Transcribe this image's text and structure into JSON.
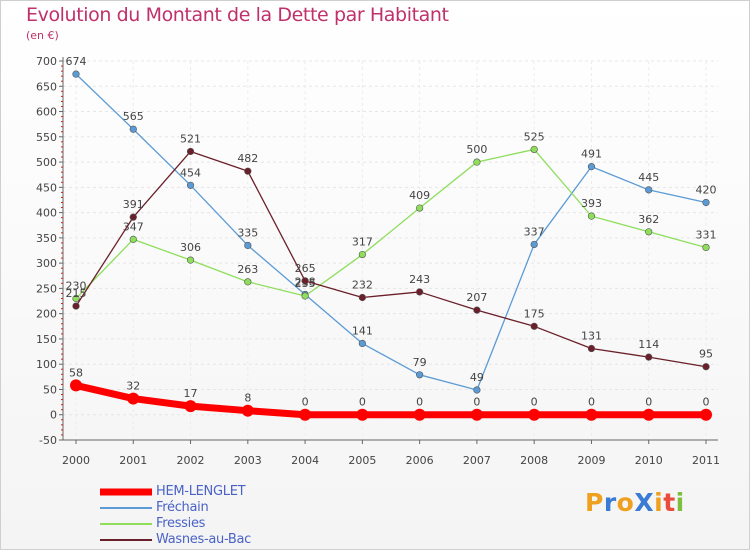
{
  "chart_data": {
    "type": "line",
    "title": "Evolution du Montant de la Dette par Habitant",
    "subtitle": "(en €)",
    "x": [
      "2000",
      "2001",
      "2002",
      "2003",
      "2004",
      "2005",
      "2006",
      "2007",
      "2008",
      "2009",
      "2010",
      "2011"
    ],
    "ylim": [
      -50,
      700
    ],
    "yticks": [
      -50,
      0,
      50,
      100,
      150,
      200,
      250,
      300,
      350,
      400,
      450,
      500,
      550,
      600,
      650,
      700
    ],
    "legend_position": "bottom-left",
    "series": [
      {
        "name": "HEM-LENGLET",
        "color": "#ff0000",
        "values": [
          58,
          32,
          17,
          8,
          0,
          0,
          0,
          0,
          0,
          0,
          0,
          0
        ]
      },
      {
        "name": "Fréchain",
        "color": "#5b9bd5",
        "values": [
          674,
          565,
          454,
          335,
          238,
          141,
          79,
          49,
          337,
          491,
          445,
          420
        ]
      },
      {
        "name": "Fressies",
        "color": "#8ede5c",
        "values": [
          230,
          347,
          306,
          263,
          235,
          317,
          409,
          500,
          525,
          393,
          362,
          331
        ]
      },
      {
        "name": "Wasnes-au-Bac",
        "color": "#6b1f2a",
        "values": [
          215,
          391,
          521,
          482,
          265,
          232,
          243,
          207,
          175,
          131,
          114,
          95
        ]
      }
    ]
  },
  "logo": {
    "text": "ProXiti",
    "letters": [
      {
        "ch": "P",
        "color": "#f0a020"
      },
      {
        "ch": "r",
        "color": "#3a7bd5"
      },
      {
        "ch": "o",
        "color": "#f0a020"
      },
      {
        "ch": "X",
        "color": "#3a7bd5"
      },
      {
        "ch": "i",
        "color": "#f0a020"
      },
      {
        "ch": "t",
        "color": "#e94b3c"
      },
      {
        "ch": "i",
        "color": "#7fbf3f"
      }
    ]
  }
}
